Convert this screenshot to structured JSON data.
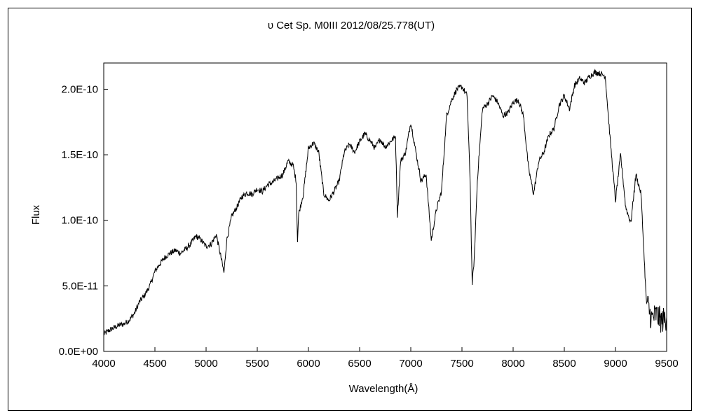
{
  "chart_data": {
    "type": "line",
    "title": "υ Cet    Sp. M0III   2012/08/25.778(UT)",
    "xlabel": "Wavelength(Å)",
    "ylabel": "Flux",
    "xlim": [
      4000,
      9500
    ],
    "ylim": [
      0,
      2.2e-10
    ],
    "xticks": [
      4000,
      4500,
      5000,
      5500,
      6000,
      6500,
      7000,
      7500,
      8000,
      8500,
      9000,
      9500
    ],
    "xtick_labels": [
      "4000",
      "4500",
      "5000",
      "5500",
      "6000",
      "6500",
      "7000",
      "7500",
      "8000",
      "8500",
      "9000",
      "9500"
    ],
    "yticks": [
      0,
      5e-11,
      1e-10,
      1.5e-10,
      2e-10
    ],
    "ytick_labels": [
      "0.0E+00",
      "5.0E-11",
      "1.0E-10",
      "1.5E-10",
      "2.0E-10"
    ],
    "grid": false,
    "legend": "none",
    "line_color": "#000000",
    "series": [
      {
        "x": [
          4000,
          4050,
          4100,
          4150,
          4200,
          4250,
          4300,
          4350,
          4400,
          4450,
          4500,
          4550,
          4600,
          4650,
          4700,
          4750,
          4800,
          4850,
          4900,
          4950,
          5000,
          5050,
          5100,
          5150,
          5175,
          5200,
          5250,
          5300,
          5350,
          5400,
          5450,
          5500,
          5550,
          5600,
          5650,
          5700,
          5750,
          5800,
          5850,
          5880,
          5893,
          5905,
          5950,
          6000,
          6050,
          6100,
          6150,
          6200,
          6250,
          6300,
          6350,
          6400,
          6450,
          6500,
          6550,
          6600,
          6650,
          6700,
          6750,
          6800,
          6850,
          6870,
          6900,
          6950,
          7000,
          7050,
          7100,
          7150,
          7200,
          7250,
          7300,
          7350,
          7400,
          7450,
          7500,
          7550,
          7580,
          7600,
          7620,
          7650,
          7700,
          7750,
          7800,
          7850,
          7900,
          7950,
          8000,
          8050,
          8100,
          8150,
          8200,
          8250,
          8300,
          8350,
          8400,
          8450,
          8500,
          8550,
          8600,
          8650,
          8700,
          8750,
          8800,
          8850,
          8900,
          8950,
          9000,
          9050,
          9100,
          9150,
          9200,
          9250,
          9300,
          9350,
          9400,
          9450,
          9500
        ],
        "y": [
          1.3e-11,
          1.6e-11,
          1.8e-11,
          2e-11,
          2.1e-11,
          2.4e-11,
          2.9e-11,
          3.8e-11,
          4.3e-11,
          5e-11,
          6.1e-11,
          6.7e-11,
          7.2e-11,
          7.5e-11,
          7.7e-11,
          7.5e-11,
          7.8e-11,
          8.2e-11,
          8.8e-11,
          8.5e-11,
          8e-11,
          8.2e-11,
          8.9e-11,
          7e-11,
          6e-11,
          8.4e-11,
          1.03e-10,
          1.1e-10,
          1.18e-10,
          1.21e-10,
          1.2e-10,
          1.24e-10,
          1.22e-10,
          1.27e-10,
          1.29e-10,
          1.32e-10,
          1.35e-10,
          1.45e-10,
          1.42e-10,
          1.3e-10,
          8.5e-11,
          1.05e-10,
          1.2e-10,
          1.55e-10,
          1.59e-10,
          1.52e-10,
          1.2e-10,
          1.15e-10,
          1.22e-10,
          1.3e-10,
          1.52e-10,
          1.58e-10,
          1.52e-10,
          1.6e-10,
          1.66e-10,
          1.61e-10,
          1.55e-10,
          1.62e-10,
          1.56e-10,
          1.6e-10,
          1.64e-10,
          1.04e-10,
          1.45e-10,
          1.52e-10,
          1.75e-10,
          1.52e-10,
          1.3e-10,
          1.35e-10,
          8.5e-11,
          1.08e-10,
          1.22e-10,
          1.8e-10,
          1.92e-10,
          2e-10,
          2.02e-10,
          1.95e-10,
          1.3e-10,
          5.2e-11,
          7e-11,
          1.3e-10,
          1.85e-10,
          1.89e-10,
          1.95e-10,
          1.9e-10,
          1.8e-10,
          1.82e-10,
          1.9e-10,
          1.92e-10,
          1.8e-10,
          1.4e-10,
          1.2e-10,
          1.45e-10,
          1.52e-10,
          1.65e-10,
          1.7e-10,
          1.88e-10,
          1.95e-10,
          1.85e-10,
          2.03e-10,
          2.08e-10,
          2.05e-10,
          2.1e-10,
          2.13e-10,
          2.12e-10,
          2.1e-10,
          1.6e-10,
          1.15e-10,
          1.5e-10,
          1.1e-10,
          9.8e-11,
          1.35e-10,
          1.2e-10,
          4e-11,
          2.5e-11,
          2.8e-11,
          2.3e-11,
          2.6e-11
        ]
      }
    ]
  }
}
